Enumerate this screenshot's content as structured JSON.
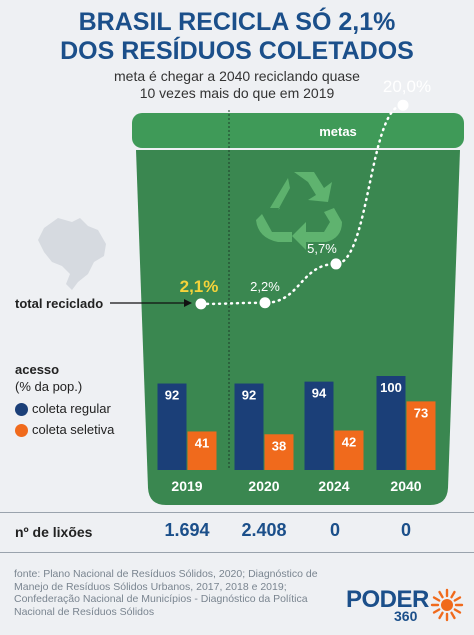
{
  "header": {
    "title_line1": "BRASIL RECICLA SÓ 2,1%",
    "title_line2": "DOS RESÍDUOS COLETADOS",
    "subtitle_line1": "meta é chegar a 2040 reciclando quase",
    "subtitle_line2": "10 vezes mais do que em 2019"
  },
  "bin": {
    "metas_label": "metas",
    "color": "#3a8750",
    "dark": "#2f7a45",
    "lid": "#3f9a58"
  },
  "annotations": {
    "total_reciclado": "total reciclado",
    "acesso": "acesso",
    "pct_pop": "(% da pop.)",
    "coleta_regular": "coleta regular",
    "coleta_seletiva": "coleta seletiva"
  },
  "colors": {
    "regular": "#1b3f78",
    "seletiva": "#f06a1c",
    "highlight": "#f5d33a",
    "title": "#1b4f8a"
  },
  "icons": [
    "recycle-icon",
    "brazil-map-icon",
    "sun-burst-icon"
  ],
  "chart_data": {
    "type": "bar",
    "categories": [
      "2019",
      "2020",
      "2024",
      "2040"
    ],
    "series": [
      {
        "name": "coleta regular",
        "values": [
          92,
          92,
          94,
          100
        ]
      },
      {
        "name": "coleta seletiva",
        "values": [
          41,
          38,
          42,
          73
        ]
      }
    ],
    "ylim": [
      0,
      100
    ],
    "line": {
      "name": "total reciclado",
      "values": [
        2.1,
        2.2,
        5.7,
        20.0
      ],
      "labels": [
        "2,1%",
        "2,2%",
        "5,7%",
        "20,0%"
      ]
    }
  },
  "lixoes": {
    "label": "nº de lixões",
    "values": [
      "1.694",
      "2.408",
      "0",
      "0"
    ]
  },
  "footer": {
    "source_lines": [
      "fonte: Plano Nacional de Resíduos Sólidos, 2020; Diagnóstico de",
      "Manejo de Resíduos Sólidos Urbanos, 2017, 2018 e 2019;",
      "Confederação Nacional de Municípios - Diagnóstico da Política",
      "Nacional de Resíduos Sólidos"
    ],
    "logo_text": "PODER",
    "logo_num": "360"
  }
}
